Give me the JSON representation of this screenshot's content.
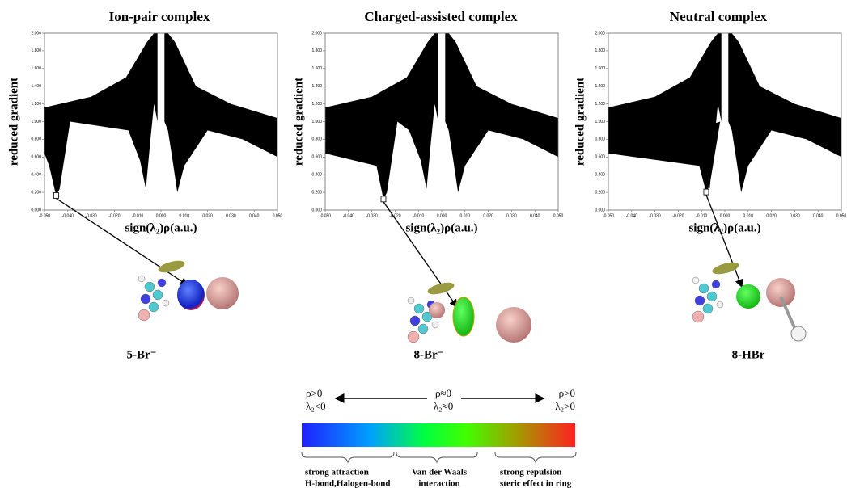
{
  "panels": [
    {
      "title": "Ion-pair complex",
      "y_label": "reduced gradient",
      "x_label": "sign(λ₂)ρ(a.u.)",
      "xlim": [
        -0.05,
        0.05
      ],
      "ylim": [
        0,
        2
      ],
      "xticks": [
        {
          "value": -0.05,
          "label": "-0.050"
        },
        {
          "value": -0.04,
          "label": "-0.040"
        },
        {
          "value": -0.03,
          "label": "-0.030"
        },
        {
          "value": -0.02,
          "label": "-0.020"
        },
        {
          "value": -0.01,
          "label": "-0.010"
        },
        {
          "value": 0,
          "label": "0.000"
        },
        {
          "value": 0.01,
          "label": "0.010"
        },
        {
          "value": 0.02,
          "label": "0.020"
        },
        {
          "value": 0.03,
          "label": "0.030"
        },
        {
          "value": 0.04,
          "label": "0.040"
        },
        {
          "value": 0.05,
          "label": "0.050"
        }
      ],
      "yticks": [
        {
          "value": 0,
          "label": "0.000"
        },
        {
          "value": 0.2,
          "label": "0.200"
        },
        {
          "value": 0.4,
          "label": "0.400"
        },
        {
          "value": 0.6,
          "label": "0.600"
        },
        {
          "value": 0.8,
          "label": "0.800"
        },
        {
          "value": 1,
          "label": "1.000"
        },
        {
          "value": 1.2,
          "label": "1.200"
        },
        {
          "value": 1.4,
          "label": "1.400"
        },
        {
          "value": 1.6,
          "label": "1.600"
        },
        {
          "value": 1.8,
          "label": "1.800"
        },
        {
          "value": 2,
          "label": "2.000"
        }
      ],
      "molecule_label": "5-Br⁻"
    },
    {
      "title": "Charged-assisted complex",
      "y_label": "reduced gradient",
      "x_label": "sign(λ₂)ρ(a.u.)",
      "xlim": [
        -0.05,
        0.05
      ],
      "ylim": [
        0,
        2
      ],
      "xticks": [
        {
          "value": -0.05,
          "label": "-0.050"
        },
        {
          "value": -0.04,
          "label": "-0.040"
        },
        {
          "value": -0.03,
          "label": "-0.030"
        },
        {
          "value": -0.02,
          "label": "-0.020"
        },
        {
          "value": -0.01,
          "label": "-0.010"
        },
        {
          "value": 0,
          "label": "0.000"
        },
        {
          "value": 0.01,
          "label": "0.010"
        },
        {
          "value": 0.02,
          "label": "0.020"
        },
        {
          "value": 0.03,
          "label": "0.030"
        },
        {
          "value": 0.04,
          "label": "0.040"
        },
        {
          "value": 0.05,
          "label": "0.050"
        }
      ],
      "yticks": [
        {
          "value": 0,
          "label": "0.000"
        },
        {
          "value": 0.2,
          "label": "0.200"
        },
        {
          "value": 0.4,
          "label": "0.400"
        },
        {
          "value": 0.6,
          "label": "0.600"
        },
        {
          "value": 0.8,
          "label": "0.800"
        },
        {
          "value": 1,
          "label": "1.000"
        },
        {
          "value": 1.2,
          "label": "1.200"
        },
        {
          "value": 1.4,
          "label": "1.400"
        },
        {
          "value": 1.6,
          "label": "1.600"
        },
        {
          "value": 1.8,
          "label": "1.800"
        },
        {
          "value": 2,
          "label": "2.000"
        }
      ],
      "molecule_label": "8-Br⁻"
    },
    {
      "title": "Neutral complex",
      "y_label": "reduced gradient",
      "x_label": "sign(λ₂)ρ(a.u.)",
      "xlim": [
        -0.05,
        0.05
      ],
      "ylim": [
        0,
        2
      ],
      "xticks": [
        {
          "value": -0.05,
          "label": "-0.050"
        },
        {
          "value": -0.04,
          "label": "-0.040"
        },
        {
          "value": -0.03,
          "label": "-0.030"
        },
        {
          "value": -0.02,
          "label": "-0.020"
        },
        {
          "value": -0.01,
          "label": "-0.010"
        },
        {
          "value": 0,
          "label": "0.000"
        },
        {
          "value": 0.01,
          "label": "0.010"
        },
        {
          "value": 0.02,
          "label": "0.020"
        },
        {
          "value": 0.03,
          "label": "0.030"
        },
        {
          "value": 0.04,
          "label": "0.040"
        },
        {
          "value": 0.05,
          "label": "0.050"
        }
      ],
      "yticks": [
        {
          "value": 0,
          "label": "0.000"
        },
        {
          "value": 0.2,
          "label": "0.200"
        },
        {
          "value": 0.4,
          "label": "0.400"
        },
        {
          "value": 0.6,
          "label": "0.600"
        },
        {
          "value": 0.8,
          "label": "0.800"
        },
        {
          "value": 1,
          "label": "1.000"
        },
        {
          "value": 1.2,
          "label": "1.200"
        },
        {
          "value": 1.4,
          "label": "1.400"
        },
        {
          "value": 1.6,
          "label": "1.600"
        },
        {
          "value": 1.8,
          "label": "1.800"
        },
        {
          "value": 2,
          "label": "2.000"
        }
      ],
      "molecule_label": "8-HBr"
    }
  ],
  "legend": {
    "left": [
      "ρ>0",
      "λ₂<0"
    ],
    "middle": [
      "ρ≈0",
      "λ₂≈0"
    ],
    "right": [
      "ρ>0",
      "λ₂>0"
    ],
    "ranges": [
      [
        "strong attraction",
        "H-bond,Halogen-bond"
      ],
      [
        "Van der Waals",
        "interaction"
      ],
      [
        "strong repulsion",
        "steric effect in ring"
      ]
    ]
  }
}
